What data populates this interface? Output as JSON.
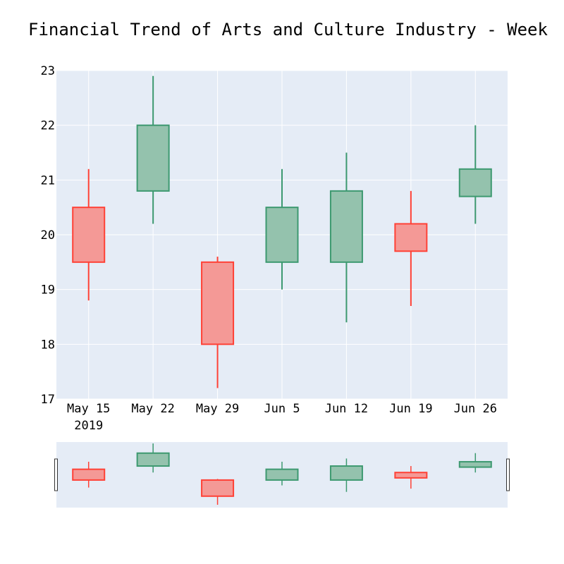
{
  "chart_data": {
    "type": "candlestick",
    "title": "Financial Trend of Arts and Culture Industry - Week",
    "xlabel": "",
    "ylabel": "",
    "ylim": [
      17,
      23
    ],
    "x_tick_labels": [
      "May 15",
      "May 22",
      "May 29",
      "Jun 5",
      "Jun 12",
      "Jun 19",
      "Jun 26"
    ],
    "x_year_label": "2019",
    "y_ticks": [
      17,
      18,
      19,
      20,
      21,
      22,
      23
    ],
    "grid": true,
    "rangeslider": true,
    "colors": {
      "increasing_line": "#3d9970",
      "increasing_fill": "#94c2ad",
      "decreasing_line": "#ff4136",
      "decreasing_fill": "#f49996",
      "plot_bg": "#e5ecf6",
      "grid": "#ffffff"
    },
    "candles": [
      {
        "date": "2019-05-15",
        "open": 20.5,
        "high": 21.2,
        "low": 18.8,
        "close": 19.5
      },
      {
        "date": "2019-05-22",
        "open": 20.8,
        "high": 22.9,
        "low": 20.2,
        "close": 22.0
      },
      {
        "date": "2019-05-29",
        "open": 19.5,
        "high": 19.6,
        "low": 17.2,
        "close": 18.0
      },
      {
        "date": "2019-06-05",
        "open": 19.5,
        "high": 21.2,
        "low": 19.0,
        "close": 20.5
      },
      {
        "date": "2019-06-12",
        "open": 19.5,
        "high": 21.5,
        "low": 18.4,
        "close": 20.8
      },
      {
        "date": "2019-06-19",
        "open": 20.2,
        "high": 20.8,
        "low": 18.7,
        "close": 19.7
      },
      {
        "date": "2019-06-26",
        "open": 20.7,
        "high": 22.0,
        "low": 20.2,
        "close": 21.2
      }
    ]
  }
}
